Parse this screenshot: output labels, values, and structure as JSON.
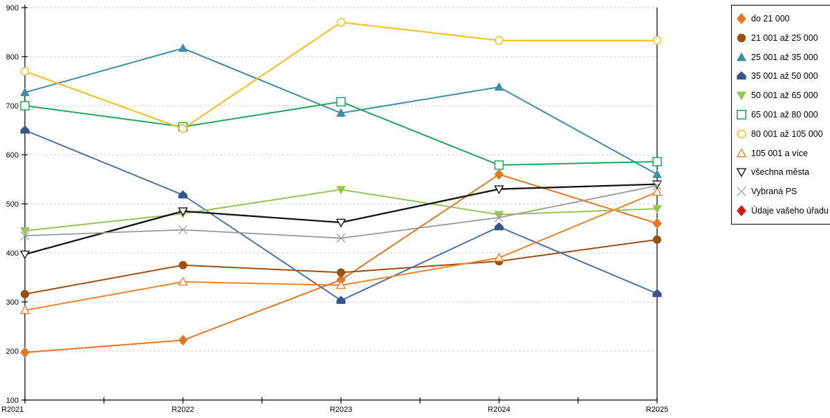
{
  "chart_data": {
    "type": "line",
    "title": "",
    "xlabel": "",
    "ylabel": "",
    "x_categories": [
      "R2021",
      "R2022",
      "R2023",
      "R2024",
      "R2025"
    ],
    "ylim": [
      100,
      900
    ],
    "ytick_step": 100,
    "y_tick_labels": [
      "100",
      "200",
      "300",
      "400",
      "500",
      "600",
      "700",
      "800",
      "900"
    ],
    "grid": "horizontal-dashed",
    "legend_position": "top-right-box",
    "series": [
      {
        "name": "do 21 000",
        "marker": "diamond",
        "fill": "filled",
        "color": "#E8761F",
        "values": [
          197,
          222,
          345,
          560,
          460
        ]
      },
      {
        "name": "21 001 až 25 000",
        "marker": "circle",
        "fill": "filled",
        "color": "#9E4E0E",
        "values": [
          316,
          375,
          360,
          383,
          427
        ]
      },
      {
        "name": "25 001 až 35 000",
        "marker": "triangle-up",
        "fill": "filled",
        "color": "#3C8DA9",
        "values": [
          727,
          817,
          685,
          738,
          560
        ]
      },
      {
        "name": "35 001 až 50 000",
        "marker": "pentagon",
        "fill": "filled",
        "color": "#34568F",
        "line_color": "#4C70A8",
        "values": [
          650,
          518,
          303,
          453,
          317
        ]
      },
      {
        "name": "50 001 až 65 000",
        "marker": "triangle-down",
        "fill": "filled",
        "color": "#94C556",
        "values": [
          445,
          480,
          529,
          478,
          490
        ]
      },
      {
        "name": "65 001 až 80 000",
        "marker": "square",
        "fill": "open",
        "color": "#1EA85C",
        "values": [
          700,
          657,
          708,
          579,
          586
        ]
      },
      {
        "name": "80 001 až 105 000",
        "marker": "circle",
        "fill": "open",
        "color": "#F5BE16",
        "values": [
          770,
          653,
          870,
          833,
          833
        ]
      },
      {
        "name": "105 001 a více",
        "marker": "triangle-up",
        "fill": "open",
        "color": "#F0832A",
        "values": [
          283,
          341,
          334,
          390,
          524
        ]
      },
      {
        "name": "všechna města",
        "marker": "triangle-down",
        "fill": "open",
        "color": "#141414",
        "values": [
          397,
          485,
          462,
          530,
          540
        ]
      },
      {
        "name": "Vybraná PS",
        "marker": "x",
        "fill": "open",
        "color": "#999999",
        "values": [
          435,
          447,
          430,
          472,
          537
        ]
      },
      {
        "name": "Údaje vašeho úřadu",
        "marker": "diamond",
        "fill": "filled",
        "color": "#E01414",
        "values": []
      }
    ]
  }
}
